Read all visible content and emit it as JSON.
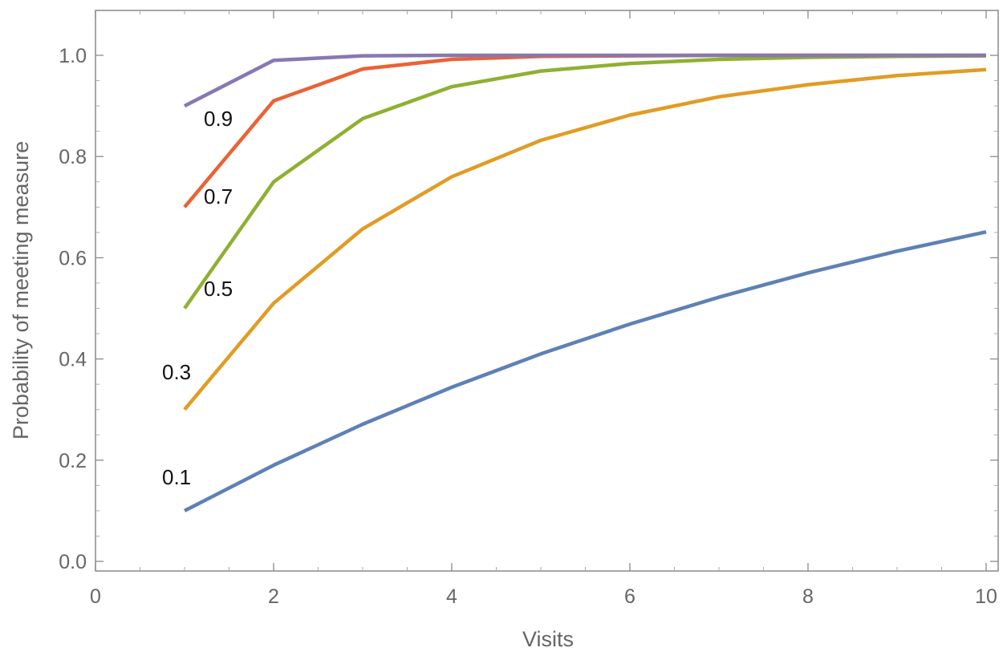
{
  "chart_data": {
    "type": "line",
    "title": "",
    "xlabel": "Visits",
    "ylabel": "Probability of meeting measure",
    "xlim": [
      0,
      10
    ],
    "ylim": [
      0,
      1.05
    ],
    "x_ticks": [
      "0",
      "2",
      "4",
      "6",
      "8",
      "10"
    ],
    "y_ticks": [
      "0.0",
      "0.2",
      "0.4",
      "0.6",
      "0.8",
      "1.0"
    ],
    "grid": false,
    "legend": "inline labels",
    "x": [
      1,
      2,
      3,
      4,
      5,
      6,
      7,
      8,
      9,
      10
    ],
    "series": [
      {
        "name": "0.1",
        "color": "#5e81b5",
        "values": [
          0.1,
          0.19,
          0.271,
          0.344,
          0.41,
          0.469,
          0.522,
          0.57,
          0.613,
          0.651
        ]
      },
      {
        "name": "0.3",
        "color": "#e19c24",
        "values": [
          0.3,
          0.51,
          0.657,
          0.76,
          0.832,
          0.882,
          0.918,
          0.942,
          0.96,
          0.972
        ]
      },
      {
        "name": "0.5",
        "color": "#8fb032",
        "values": [
          0.5,
          0.75,
          0.875,
          0.938,
          0.969,
          0.984,
          0.992,
          0.996,
          0.998,
          0.999
        ]
      },
      {
        "name": "0.7",
        "color": "#eb6235",
        "values": [
          0.7,
          0.91,
          0.973,
          0.992,
          0.998,
          0.999,
          1.0,
          1.0,
          1.0,
          1.0
        ]
      },
      {
        "name": "0.9",
        "color": "#8778b3",
        "values": [
          0.9,
          0.99,
          0.999,
          1.0,
          1.0,
          1.0,
          1.0,
          1.0,
          1.0,
          1.0
        ]
      }
    ]
  }
}
